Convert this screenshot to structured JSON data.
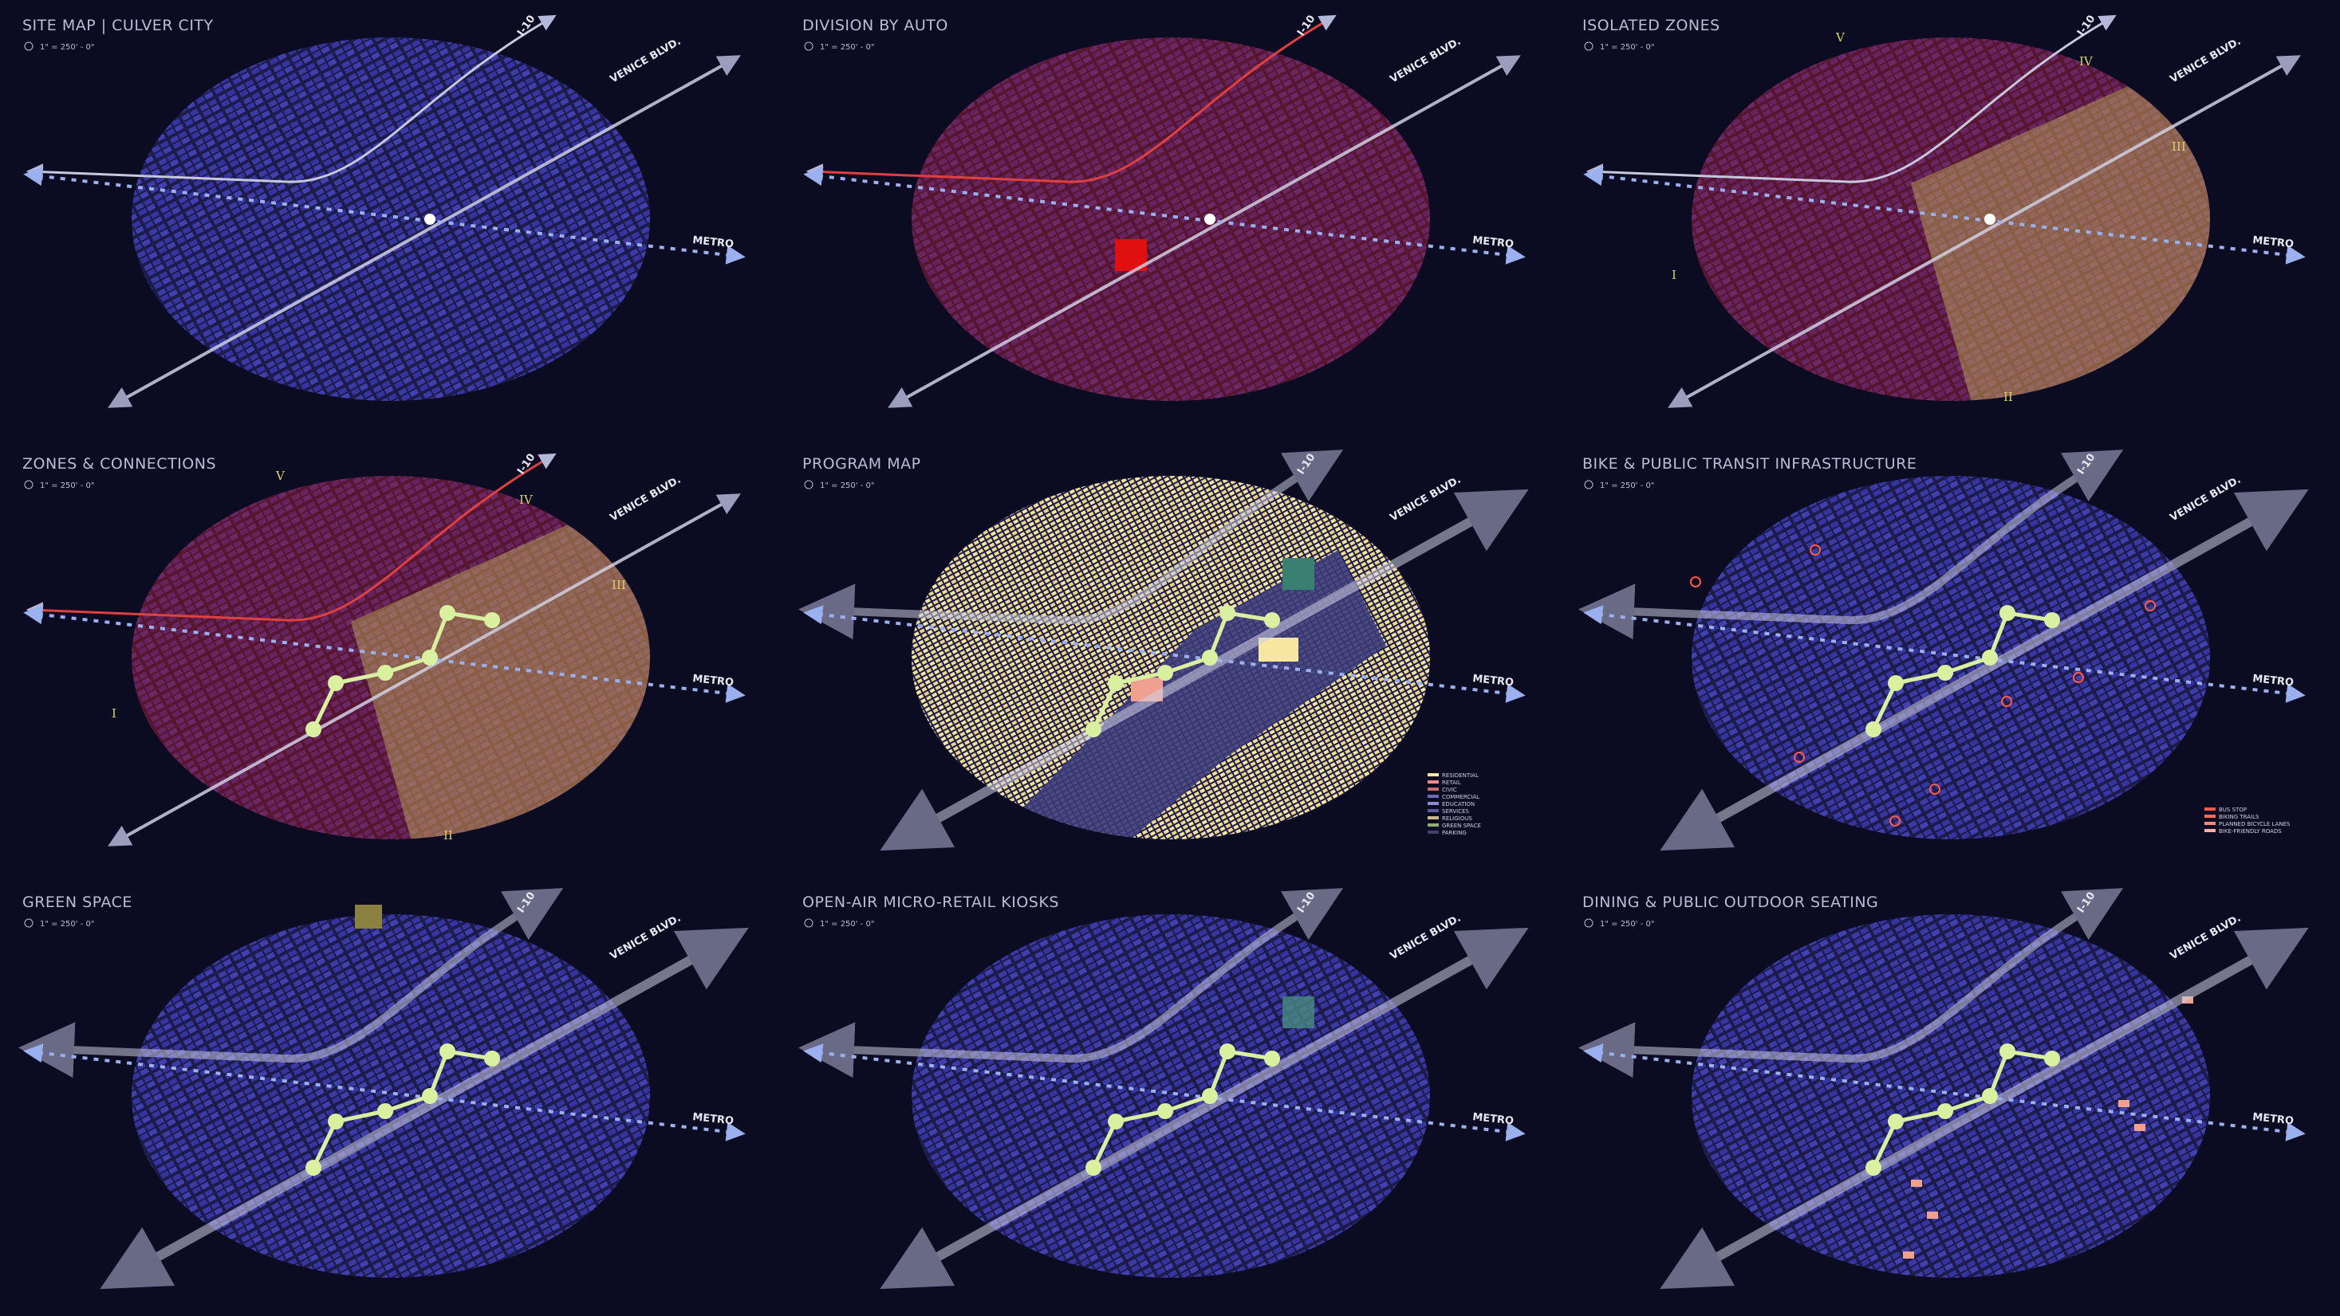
{
  "panels": [
    {
      "title": "SITE MAP | CULVER CITY",
      "scale": "1\" = 250' - 0\"",
      "roads": {
        "i10": "I-10",
        "venice": "VENICE BLVD.",
        "metro": "METRO"
      }
    },
    {
      "title": "DIVISION BY AUTO",
      "scale": "1\" = 250' - 0\"",
      "roads": {
        "i10": "I-10",
        "venice": "VENICE BLVD.",
        "metro": "METRO"
      }
    },
    {
      "title": "ISOLATED ZONES",
      "scale": "1\" = 250' - 0\"",
      "roads": {
        "i10": "I-10",
        "venice": "VENICE BLVD.",
        "metro": "METRO"
      },
      "zones": [
        "I",
        "II",
        "III",
        "IV",
        "V"
      ]
    },
    {
      "title": "ZONES & CONNECTIONS",
      "scale": "1\" = 250' - 0\"",
      "roads": {
        "i10": "I-10",
        "venice": "VENICE BLVD.",
        "metro": "METRO"
      },
      "zones": [
        "I",
        "II",
        "III",
        "IV",
        "V"
      ]
    },
    {
      "title": "PROGRAM MAP",
      "scale": "1\" = 250' - 0\"",
      "roads": {
        "i10": "I-10",
        "venice": "VENICE BLVD.",
        "metro": "METRO"
      },
      "legend": [
        "RESIDENTIAL",
        "RETAIL",
        "CIVIC",
        "COMMERCIAL",
        "EDUCATION",
        "SERVICES",
        "RELIGIOUS",
        "GREEN SPACE",
        "PARKING"
      ]
    },
    {
      "title": "BIKE & PUBLIC TRANSIT INFRASTRUCTURE",
      "scale": "1\" = 250' - 0\"",
      "roads": {
        "i10": "I-10",
        "venice": "VENICE BLVD.",
        "metro": "METRO"
      },
      "legend": [
        "BUS STOP",
        "BIKING TRAILS",
        "PLANNED BICYCLE LANES",
        "BIKE-FRIENDLY ROADS"
      ]
    },
    {
      "title": "GREEN SPACE",
      "scale": "1\" = 250' - 0\"",
      "roads": {
        "i10": "I-10",
        "venice": "VENICE BLVD.",
        "metro": "METRO"
      }
    },
    {
      "title": "OPEN-AIR MICRO-RETAIL KIOSKS",
      "scale": "1\" = 250' - 0\"",
      "roads": {
        "i10": "I-10",
        "venice": "VENICE BLVD.",
        "metro": "METRO"
      }
    },
    {
      "title": "DINING & PUBLIC OUTDOOR SEATING",
      "scale": "1\" = 250' - 0\"",
      "roads": {
        "i10": "I-10",
        "venice": "VENICE BLVD.",
        "metro": "METRO"
      }
    }
  ]
}
